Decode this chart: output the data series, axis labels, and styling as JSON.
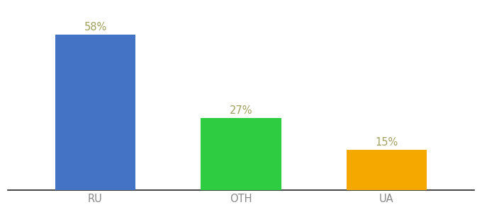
{
  "categories": [
    "RU",
    "OTH",
    "UA"
  ],
  "values": [
    58,
    27,
    15
  ],
  "bar_colors": [
    "#4472c4",
    "#2ecc40",
    "#f5a800"
  ],
  "label_color": "#a0a060",
  "labels": [
    "58%",
    "27%",
    "15%"
  ],
  "ylim": [
    0,
    68
  ],
  "bar_width": 0.55,
  "x_positions": [
    0.25,
    0.55,
    0.85
  ],
  "background_color": "#ffffff",
  "label_fontsize": 10.5,
  "tick_fontsize": 10.5,
  "tick_color": "#888888"
}
